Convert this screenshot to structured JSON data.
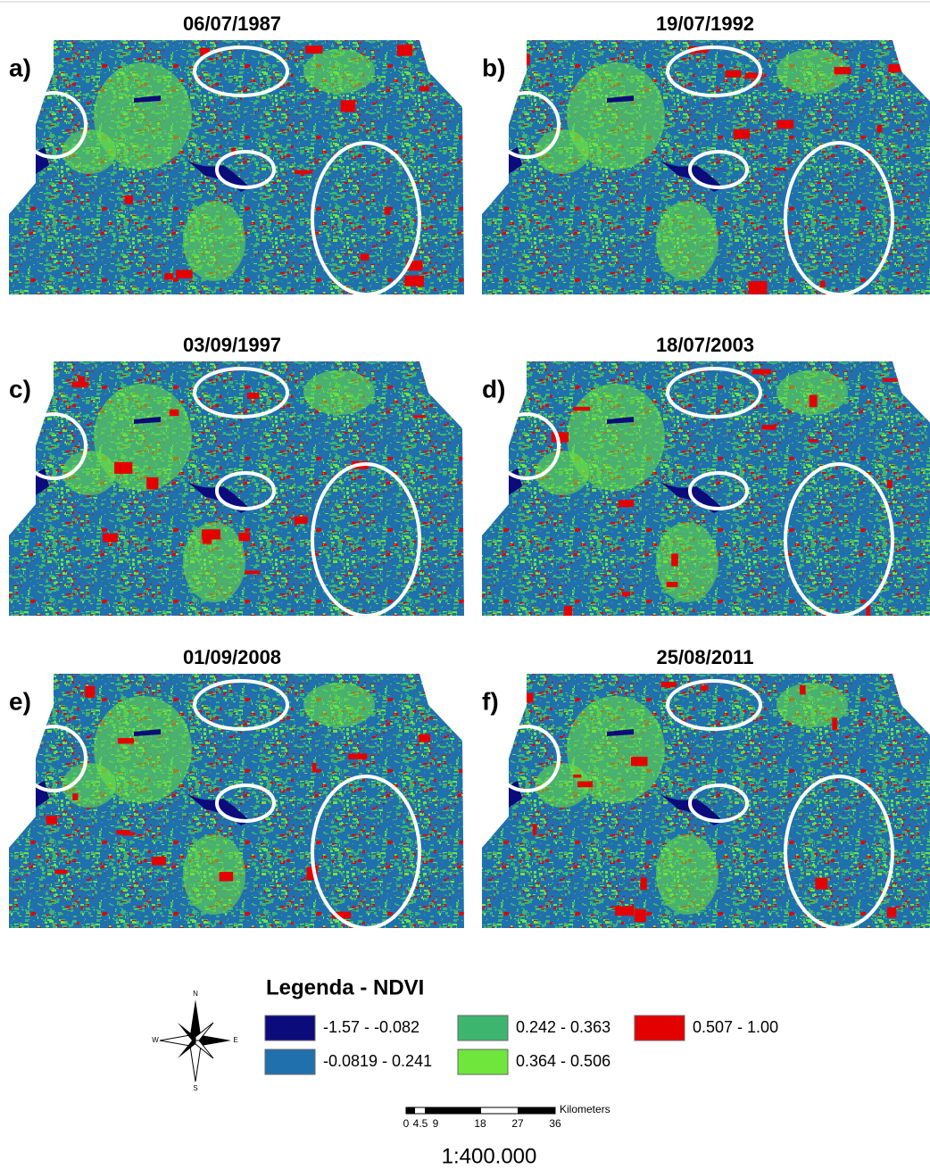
{
  "panels": [
    {
      "label": "a)",
      "date": "06/07/1987"
    },
    {
      "label": "b)",
      "date": "19/07/1992"
    },
    {
      "label": "c)",
      "date": "03/09/1997"
    },
    {
      "label": "d)",
      "date": "18/07/2003"
    },
    {
      "label": "e)",
      "date": "01/09/2008"
    },
    {
      "label": "f)",
      "date": "25/08/2011"
    }
  ],
  "legend": {
    "title": "Legenda - NDVI",
    "items": [
      {
        "label": "-1.57 - -0.082",
        "color": "#0b0b7c"
      },
      {
        "label": "-0.0819 - 0.241",
        "color": "#2170ae"
      },
      {
        "label": "0.242 - 0.363",
        "color": "#3db56e"
      },
      {
        "label": "0.364 - 0.506",
        "color": "#6ee63c"
      },
      {
        "label": "0.507 - 1.00",
        "color": "#e50000"
      }
    ]
  },
  "compass": {
    "north": "N",
    "south": "S",
    "east": "E",
    "west": "W"
  },
  "scale_bar": {
    "ticks": [
      "0",
      "4.5",
      "9",
      "18",
      "27",
      "36"
    ],
    "unit": "Kilometers"
  },
  "scale": "1:400.000"
}
